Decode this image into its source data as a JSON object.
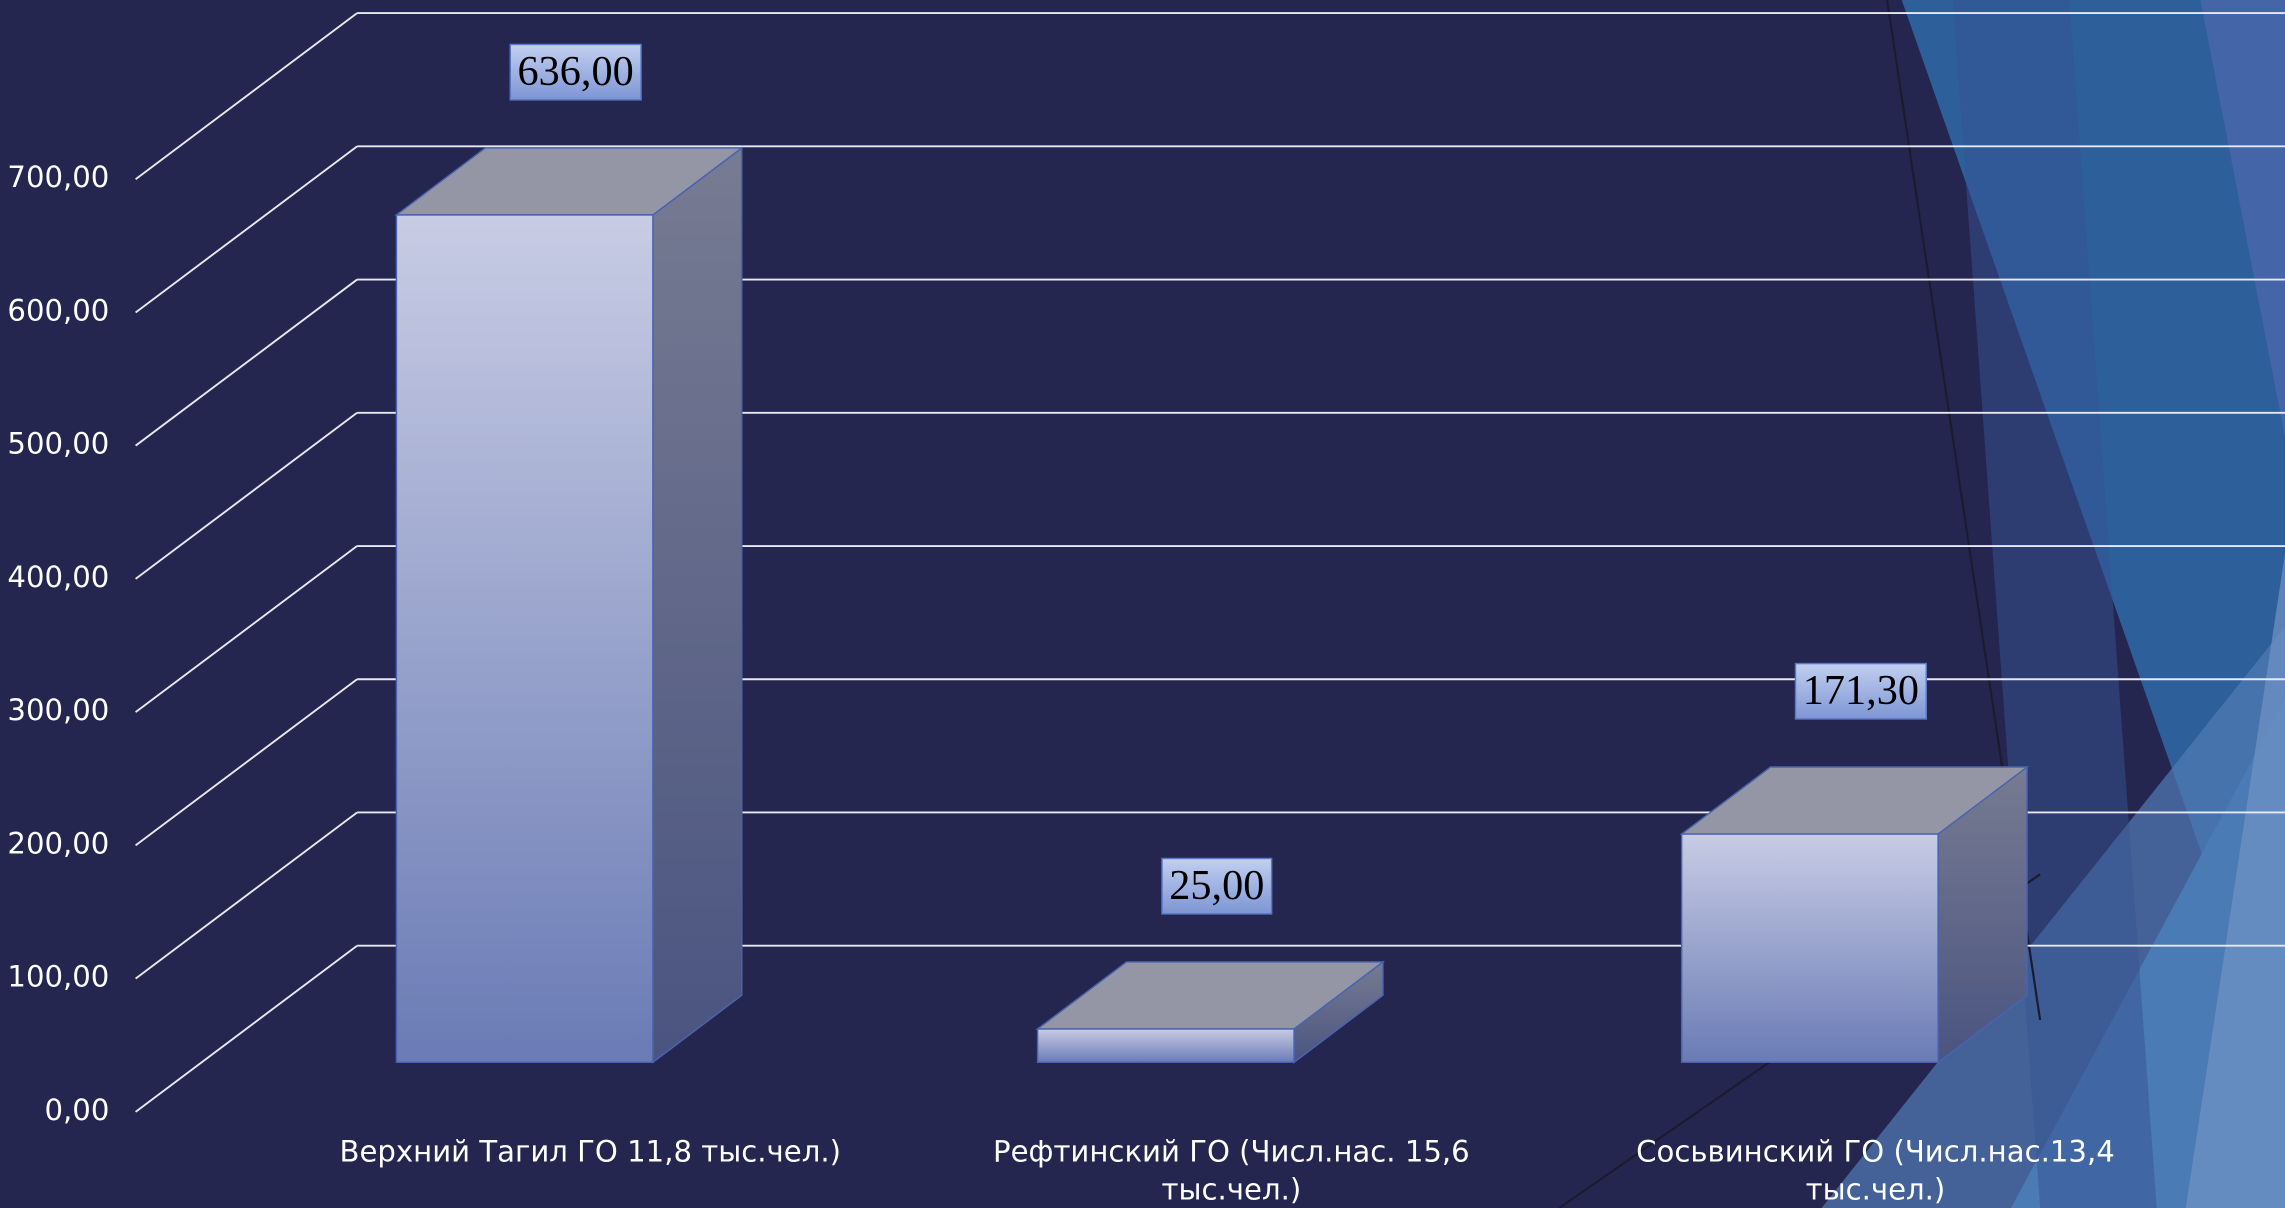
{
  "chart_data": {
    "type": "bar3d",
    "categories": [
      "Верхний Тагил ГО 11,8 тыс.чел.)",
      "Рефтинский ГО (Числ.нас. 15,6 тыс.чел.)",
      "Сосьвинский ГО (Числ.нас.13,4 тыс.чел.)"
    ],
    "values": [
      636,
      25,
      171.3
    ],
    "value_labels": [
      "636,00",
      "25,00",
      "171,30"
    ],
    "ylim": [
      0,
      700
    ],
    "yticks": [
      {
        "value": 0,
        "label": "0,00"
      },
      {
        "value": 100,
        "label": "100,00"
      },
      {
        "value": 200,
        "label": "200,00"
      },
      {
        "value": 300,
        "label": "300,00"
      },
      {
        "value": 400,
        "label": "400,00"
      },
      {
        "value": 500,
        "label": "500,00"
      },
      {
        "value": 600,
        "label": "600,00"
      },
      {
        "value": 700,
        "label": "700,00"
      }
    ],
    "grid": true
  }
}
